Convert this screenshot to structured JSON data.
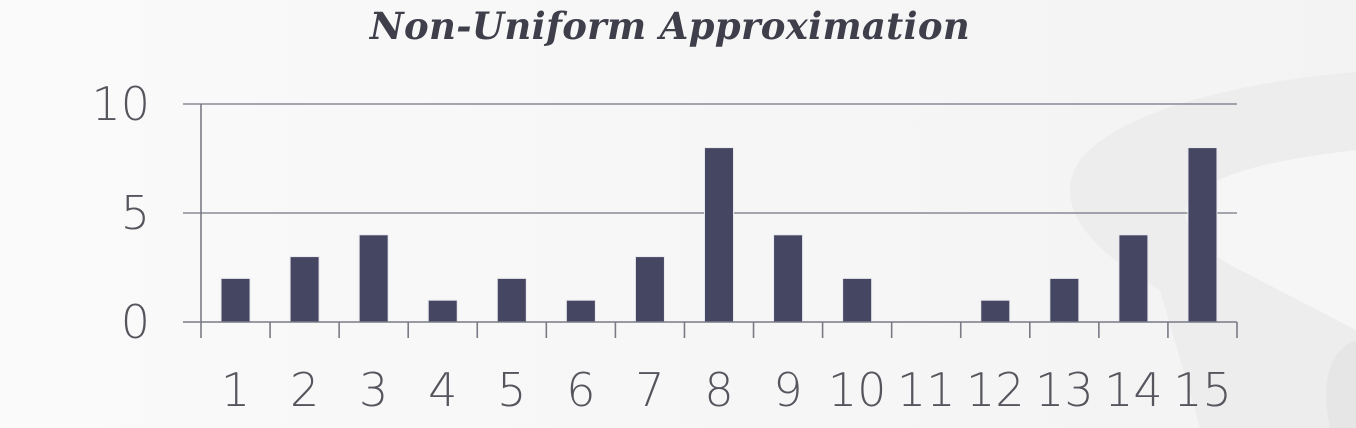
{
  "chart_data": {
    "type": "bar",
    "title": "Non-Uniform Approximation",
    "xlabel": "",
    "ylabel": "",
    "categories": [
      "1",
      "2",
      "3",
      "4",
      "5",
      "6",
      "7",
      "8",
      "9",
      "10",
      "11",
      "12",
      "13",
      "14",
      "15"
    ],
    "values": [
      2,
      3,
      4,
      1,
      2,
      1,
      3,
      8,
      4,
      2,
      0,
      1,
      2,
      4,
      8
    ],
    "ylim": [
      0,
      10
    ],
    "yticks": [
      "0",
      "5",
      "10"
    ],
    "grid": true,
    "legend": "none",
    "colors": {
      "bar": "#454662",
      "bar_edge": "#e8e8ee",
      "axis": "#7a7a86",
      "gridline": "#8a8a96"
    }
  }
}
